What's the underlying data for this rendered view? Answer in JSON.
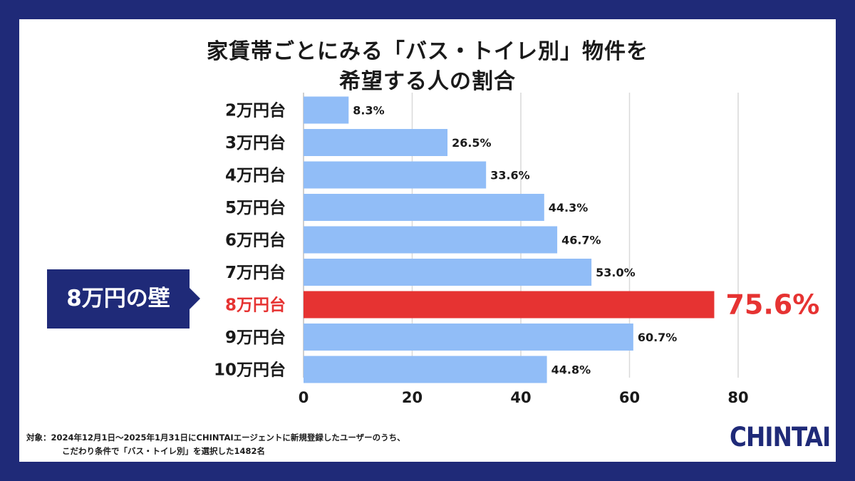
{
  "title": {
    "line1": "家賃帯ごとにみる「バス・トイレ別」物件を",
    "line2": "希望する人の割合"
  },
  "callout": {
    "text": "8万円の壁"
  },
  "footnote": {
    "line1": "対象：2024年12月1日〜2025年1月31日にCHINTAIエージェントに新規登録したユーザーのうち、",
    "line2": "こだわり条件で「バス・トイレ別」を選択した1482名"
  },
  "logo": {
    "text": "CHINTAI"
  },
  "colors": {
    "bar": "#91bdf7",
    "highlight": "#e63332",
    "frame": "#1f2a78",
    "grid": "#d9d9d9"
  },
  "chart_data": {
    "type": "bar",
    "orientation": "horizontal",
    "title": "家賃帯ごとにみる「バス・トイレ別」物件を希望する人の割合",
    "categories": [
      "2万円台",
      "3万円台",
      "4万円台",
      "5万円台",
      "6万円台",
      "7万円台",
      "8万円台",
      "9万円台",
      "10万円台"
    ],
    "values": [
      8.3,
      26.5,
      33.6,
      44.3,
      46.7,
      53.0,
      75.6,
      60.7,
      44.8
    ],
    "value_labels": [
      "8.3%",
      "26.5%",
      "33.6%",
      "44.3%",
      "46.7%",
      "53.0%",
      "75.6%",
      "60.7%",
      "44.8%"
    ],
    "highlight_index": 6,
    "xlim": [
      0,
      80
    ],
    "xticks": [
      0,
      20,
      40,
      60,
      80
    ],
    "xlabel": "",
    "ylabel": "",
    "grid": true,
    "legend": "none"
  }
}
